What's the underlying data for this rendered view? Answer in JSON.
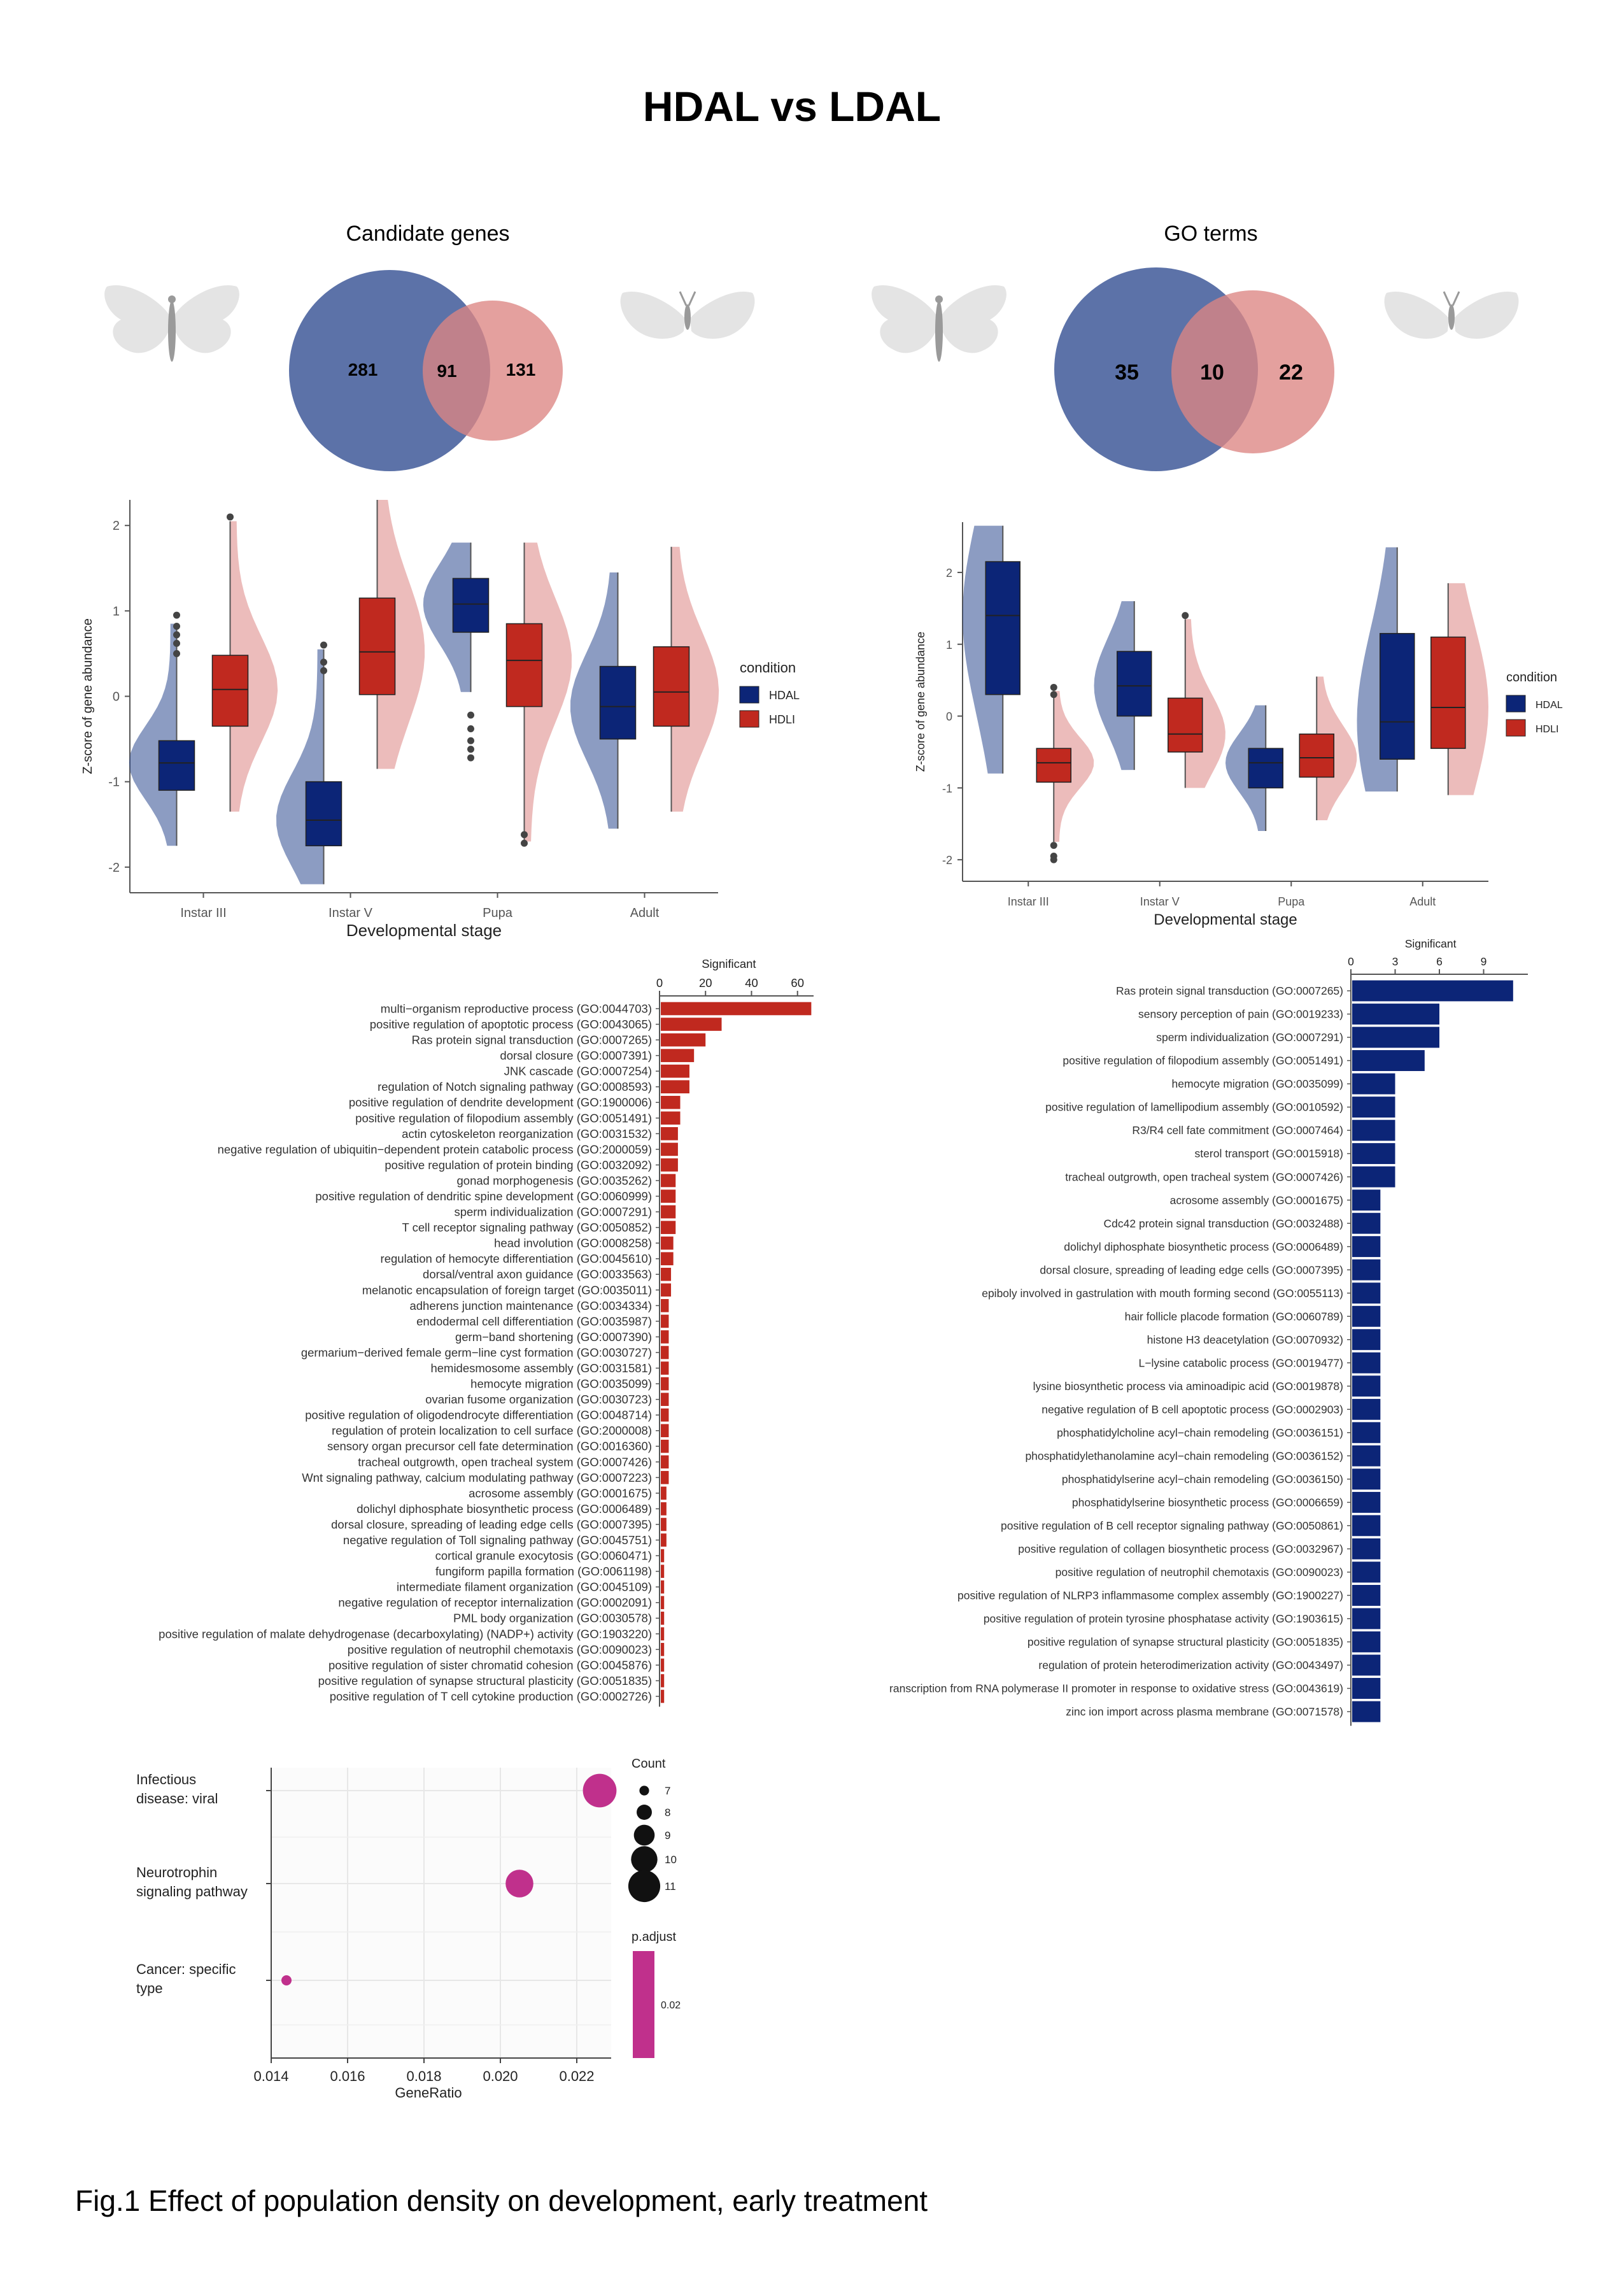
{
  "page": {
    "title": "HDAL vs LDAL",
    "caption": "Fig.1 Effect of population density on development, early treatment"
  },
  "colors": {
    "hdal": "#0c2577",
    "hdli": "#c0291f",
    "hdal_light": "#2e4a8f",
    "hdli_light": "#dc8583",
    "bar_left": "#c0291f",
    "bar_right": "#0c2577",
    "dot": "#c0308c",
    "butterfly": "#e4e4e4"
  },
  "chart_data": [
    {
      "id": "venn-genes",
      "type": "venn",
      "title": "Candidate genes",
      "sets": [
        {
          "only": "281"
        },
        {
          "only": "131"
        }
      ],
      "overlap": "91"
    },
    {
      "id": "venn-go",
      "type": "venn",
      "title": "GO terms",
      "sets": [
        {
          "only": "35"
        },
        {
          "only": "22"
        }
      ],
      "overlap": "10"
    },
    {
      "id": "violin-left",
      "type": "box-violin",
      "xlabel": "Developmental stage",
      "ylabel": "Z-score of gene abundance",
      "ylim": [
        -2.3,
        2.3
      ],
      "yticks": [
        "2",
        "1",
        "0",
        "-1",
        "-2"
      ],
      "categories": [
        "Instar III",
        "Instar V",
        "Pupa",
        "Adult"
      ],
      "legend_title": "condition",
      "legend": [
        "HDAL",
        "HDLI"
      ],
      "series": [
        {
          "name": "HDAL",
          "boxes": [
            {
              "min": -1.75,
              "q1": -1.1,
              "median": -0.78,
              "q3": -0.52,
              "max": 0.85,
              "outliers": [
                0.95,
                0.82,
                0.72,
                0.62,
                0.5
              ]
            },
            {
              "min": -2.2,
              "q1": -1.75,
              "median": -1.45,
              "q3": -1.0,
              "max": 0.55,
              "outliers": [
                0.6,
                0.4,
                0.3
              ]
            },
            {
              "min": 0.05,
              "q1": 0.75,
              "median": 1.08,
              "q3": 1.38,
              "max": 1.8,
              "outliers": [
                -0.22,
                -0.38,
                -0.52,
                -0.62,
                -0.72
              ]
            },
            {
              "min": -1.55,
              "q1": -0.5,
              "median": -0.12,
              "q3": 0.35,
              "max": 1.45,
              "outliers": []
            }
          ]
        },
        {
          "name": "HDLI",
          "boxes": [
            {
              "min": -1.35,
              "q1": -0.35,
              "median": 0.08,
              "q3": 0.48,
              "max": 2.05,
              "outliers": [
                2.1
              ]
            },
            {
              "min": -0.85,
              "q1": 0.02,
              "median": 0.52,
              "q3": 1.15,
              "max": 2.3,
              "outliers": []
            },
            {
              "min": -1.7,
              "q1": -0.12,
              "median": 0.42,
              "q3": 0.85,
              "max": 1.8,
              "outliers": [
                -1.62,
                -1.72
              ]
            },
            {
              "min": -1.35,
              "q1": -0.35,
              "median": 0.05,
              "q3": 0.58,
              "max": 1.75,
              "outliers": []
            }
          ]
        }
      ]
    },
    {
      "id": "violin-right",
      "type": "box-violin",
      "xlabel": "Developmental stage",
      "ylabel": "Z-score of gene abundance",
      "ylim": [
        -2.3,
        2.7
      ],
      "yticks": [
        "2",
        "1",
        "0",
        "-1",
        "-2"
      ],
      "categories": [
        "Instar III",
        "Instar V",
        "Pupa",
        "Adult"
      ],
      "legend_title": "condition",
      "legend": [
        "HDAL",
        "HDLI"
      ],
      "series": [
        {
          "name": "HDAL",
          "boxes": [
            {
              "min": -0.8,
              "q1": 0.3,
              "median": 1.4,
              "q3": 2.15,
              "max": 2.65,
              "outliers": []
            },
            {
              "min": -0.75,
              "q1": 0.0,
              "median": 0.42,
              "q3": 0.9,
              "max": 1.6,
              "outliers": []
            },
            {
              "min": -1.6,
              "q1": -1.0,
              "median": -0.65,
              "q3": -0.45,
              "max": 0.15,
              "outliers": []
            },
            {
              "min": -1.05,
              "q1": -0.6,
              "median": -0.08,
              "q3": 1.15,
              "max": 2.35,
              "outliers": []
            }
          ]
        },
        {
          "name": "HDLI",
          "boxes": [
            {
              "min": -1.75,
              "q1": -0.92,
              "median": -0.65,
              "q3": -0.45,
              "max": 0.35,
              "outliers": [
                0.4,
                0.3,
                -1.8,
                -1.95,
                -2.0
              ]
            },
            {
              "min": -1.0,
              "q1": -0.5,
              "median": -0.25,
              "q3": 0.25,
              "max": 1.35,
              "outliers": [
                1.4
              ]
            },
            {
              "min": -1.45,
              "q1": -0.85,
              "median": -0.58,
              "q3": -0.25,
              "max": 0.55,
              "outliers": []
            },
            {
              "min": -1.1,
              "q1": -0.45,
              "median": 0.12,
              "q3": 1.1,
              "max": 1.85,
              "outliers": []
            }
          ]
        }
      ]
    },
    {
      "id": "bar-left",
      "type": "bar",
      "orientation": "horizontal",
      "xlabel": "Significant",
      "xlim": [
        0,
        67
      ],
      "xticks": [
        "0",
        "20",
        "40",
        "60"
      ],
      "categories": [
        "multi−organism reproductive process (GO:0044703)",
        "positive regulation of apoptotic process (GO:0043065)",
        "Ras protein signal transduction (GO:0007265)",
        "dorsal closure (GO:0007391)",
        "JNK cascade (GO:0007254)",
        "regulation of Notch signaling pathway (GO:0008593)",
        "positive regulation of dendrite development (GO:1900006)",
        "positive regulation of filopodium assembly (GO:0051491)",
        "actin cytoskeleton reorganization (GO:0031532)",
        "negative regulation of ubiquitin−dependent protein catabolic process (GO:2000059)",
        "positive regulation of protein binding (GO:0032092)",
        "gonad morphogenesis (GO:0035262)",
        "positive regulation of dendritic spine development (GO:0060999)",
        "sperm individualization (GO:0007291)",
        "T cell receptor signaling pathway (GO:0050852)",
        "head involution (GO:0008258)",
        "regulation of hemocyte differentiation (GO:0045610)",
        "dorsal/ventral axon guidance (GO:0033563)",
        "melanotic encapsulation of foreign target (GO:0035011)",
        "adherens junction maintenance (GO:0034334)",
        "endodermal cell differentiation (GO:0035987)",
        "germ−band shortening (GO:0007390)",
        "germarium−derived female germ−line cyst formation (GO:0030727)",
        "hemidesmosome assembly (GO:0031581)",
        "hemocyte migration (GO:0035099)",
        "ovarian fusome organization (GO:0030723)",
        "positive regulation of oligodendrocyte differentiation (GO:0048714)",
        "regulation of protein localization to cell surface (GO:2000008)",
        "sensory organ precursor cell fate determination (GO:0016360)",
        "tracheal outgrowth, open tracheal system (GO:0007426)",
        "Wnt signaling pathway, calcium modulating pathway (GO:0007223)",
        "acrosome assembly (GO:0001675)",
        "dolichyl diphosphate biosynthetic process (GO:0006489)",
        "dorsal closure, spreading of leading edge cells (GO:0007395)",
        "negative regulation of Toll signaling pathway (GO:0045751)",
        "cortical granule exocytosis (GO:0060471)",
        "fungiform papilla formation (GO:0061198)",
        "intermediate filament organization (GO:0045109)",
        "negative regulation of receptor internalization (GO:0002091)",
        "PML body organization (GO:0030578)",
        "positive regulation of malate dehydrogenase (decarboxylating) (NADP+) activity (GO:1903220)",
        "positive regulation of neutrophil chemotaxis (GO:0090023)",
        "positive regulation of sister chromatid cohesion (GO:0045876)",
        "positive regulation of synapse structural plasticity (GO:0051835)",
        "positive regulation of T cell cytokine production (GO:0002726)"
      ],
      "values": [
        66,
        27,
        20,
        15,
        13,
        13,
        9,
        9,
        8,
        8,
        8,
        7,
        7,
        7,
        7,
        6,
        6,
        5,
        5,
        4,
        4,
        4,
        4,
        4,
        4,
        4,
        4,
        4,
        4,
        4,
        4,
        3,
        3,
        3,
        3,
        2,
        2,
        2,
        2,
        2,
        2,
        2,
        2,
        2,
        2
      ]
    },
    {
      "id": "bar-right",
      "type": "bar",
      "orientation": "horizontal",
      "xlabel": "Significant",
      "xlim": [
        0,
        12
      ],
      "xticks": [
        "0",
        "3",
        "6",
        "9"
      ],
      "categories": [
        "Ras protein signal transduction (GO:0007265)",
        "sensory perception of pain (GO:0019233)",
        "sperm individualization (GO:0007291)",
        "positive regulation of filopodium assembly (GO:0051491)",
        "hemocyte migration (GO:0035099)",
        "positive regulation of lamellipodium assembly (GO:0010592)",
        "R3/R4 cell fate commitment (GO:0007464)",
        "sterol transport (GO:0015918)",
        "tracheal outgrowth, open tracheal system (GO:0007426)",
        "acrosome assembly (GO:0001675)",
        "Cdc42 protein signal transduction (GO:0032488)",
        "dolichyl diphosphate biosynthetic process (GO:0006489)",
        "dorsal closure, spreading of leading edge cells (GO:0007395)",
        "epiboly involved in gastrulation with mouth forming second (GO:0055113)",
        "hair follicle placode formation (GO:0060789)",
        "histone H3 deacetylation (GO:0070932)",
        "L−lysine catabolic process (GO:0019477)",
        "lysine biosynthetic process via aminoadipic acid (GO:0019878)",
        "negative regulation of B cell apoptotic process (GO:0002903)",
        "phosphatidylcholine acyl−chain remodeling (GO:0036151)",
        "phosphatidylethanolamine acyl−chain remodeling (GO:0036152)",
        "phosphatidylserine acyl−chain remodeling (GO:0036150)",
        "phosphatidylserine biosynthetic process (GO:0006659)",
        "positive regulation of B cell receptor signaling pathway (GO:0050861)",
        "positive regulation of collagen biosynthetic process (GO:0032967)",
        "positive regulation of neutrophil chemotaxis (GO:0090023)",
        "positive regulation of NLRP3 inflammasome complex assembly (GO:1900227)",
        "positive regulation of protein tyrosine phosphatase activity (GO:1903615)",
        "positive regulation of synapse structural plasticity (GO:0051835)",
        "regulation of protein heterodimerization activity (GO:0043497)",
        "ranscription from RNA polymerase II promoter in response to oxidative stress (GO:0043619)",
        "zinc ion import across plasma membrane (GO:0071578)"
      ],
      "values": [
        11,
        6,
        6,
        5,
        3,
        3,
        3,
        3,
        3,
        2,
        2,
        2,
        2,
        2,
        2,
        2,
        2,
        2,
        2,
        2,
        2,
        2,
        2,
        2,
        2,
        2,
        2,
        2,
        2,
        2,
        2,
        2
      ]
    },
    {
      "id": "dot-plot",
      "type": "scatter",
      "xlabel": "GeneRatio",
      "xlim": [
        0.014,
        0.0229
      ],
      "xticks": [
        0.014,
        0.016,
        0.018,
        0.02,
        0.022
      ],
      "xtick_labels": [
        "0.014",
        "0.016",
        "0.018",
        "0.020",
        "0.022"
      ],
      "categories": [
        [
          "Infectious",
          "disease: viral"
        ],
        [
          "Neurotrophin",
          "signaling pathway"
        ],
        [
          "Cancer: specific",
          "type"
        ]
      ],
      "points": [
        {
          "category": 0,
          "x": 0.0226,
          "count": 11
        },
        {
          "category": 1,
          "x": 0.0205,
          "count": 10
        },
        {
          "category": 2,
          "x": 0.0144,
          "count": 7
        }
      ],
      "size_legend_title": "Count",
      "size_legend": [
        {
          "label": "7",
          "count": 7
        },
        {
          "label": "8",
          "count": 8
        },
        {
          "label": "9",
          "count": 9
        },
        {
          "label": "10",
          "count": 10
        },
        {
          "label": "11",
          "count": 11
        }
      ],
      "color_legend_title": "p.adjust",
      "color_legend_tick": "0.02"
    }
  ]
}
